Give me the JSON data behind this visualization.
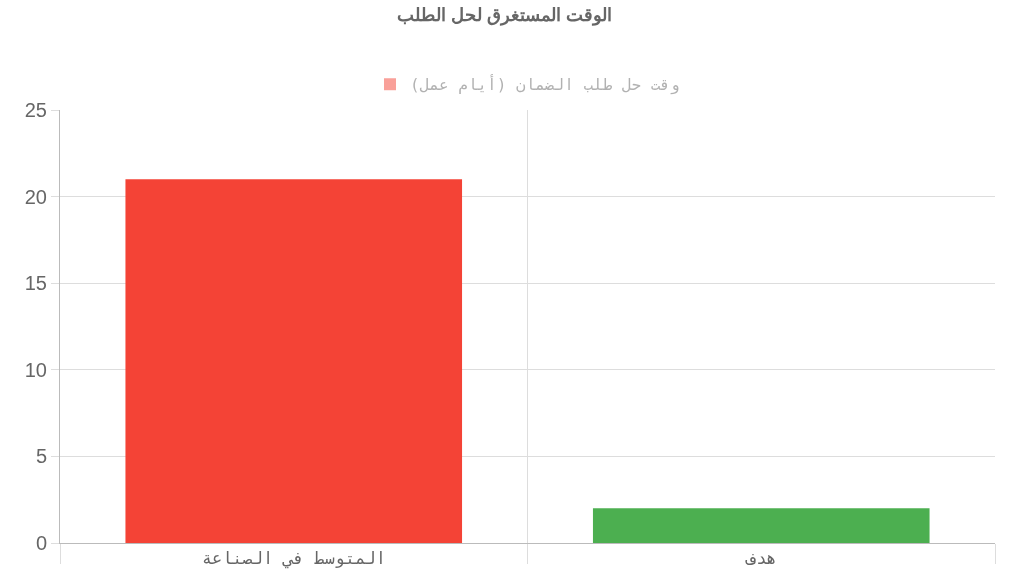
{
  "chart_data": {
    "type": "bar",
    "title": "الوقت المستغرق لحل الطلب",
    "categories": [
      "المتوسط في الصناعة",
      "هدف"
    ],
    "series": [
      {
        "name": "وقت حل طلب الضمان (أيام عمل)",
        "color": "#f44336",
        "colors": [
          "#f44336",
          "#4caf50"
        ],
        "values": [
          21,
          2
        ]
      }
    ],
    "ylim": [
      0,
      25
    ],
    "yticks": [
      0,
      5,
      10,
      15,
      20,
      25
    ],
    "grid": true,
    "legend": "top"
  }
}
